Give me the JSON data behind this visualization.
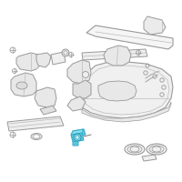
{
  "bg_color": "#ffffff",
  "line_color": "#999999",
  "line_color2": "#bbbbbb",
  "highlight_color": "#5bc8e0",
  "highlight_color2": "#3aaec8",
  "fig_width": 2.0,
  "fig_height": 2.0,
  "dpi": 100
}
